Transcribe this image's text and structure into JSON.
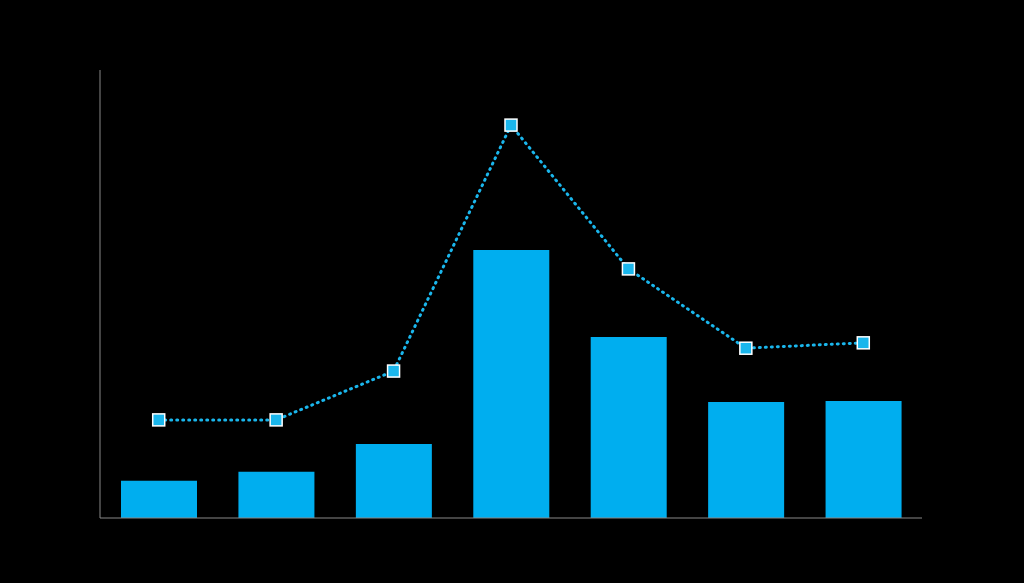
{
  "chart_data": {
    "type": "bar",
    "categories": [
      null,
      null,
      null,
      null,
      null,
      null,
      null
    ],
    "ylim": [
      0,
      100
    ],
    "tick_labels": false,
    "series": [
      {
        "type": "bar",
        "color": "#00aeef",
        "values": [
          8.3,
          10.3,
          16.5,
          59.8,
          40.4,
          25.9,
          26.1
        ]
      },
      {
        "type": "line",
        "color": "#1ab6ec",
        "marker": "square",
        "line_style": "dotted",
        "values": [
          21.9,
          21.9,
          32.8,
          87.7,
          55.6,
          37.9,
          39.1
        ]
      }
    ]
  }
}
